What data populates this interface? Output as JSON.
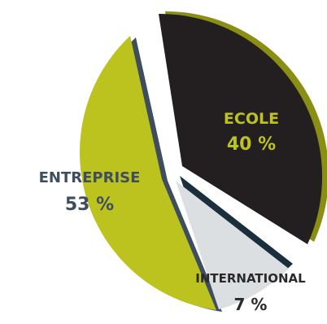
{
  "chart_data": {
    "type": "pie",
    "title": "",
    "slices": [
      {
        "label": "ENTREPRISE",
        "value_label": "53 %",
        "value": 53,
        "color": "#bcc21e",
        "shadow": "#3e4e5e"
      },
      {
        "label": "ECOLE",
        "value_label": "40 %",
        "value": 40,
        "color": "#231f20",
        "shadow": "#8a8f14"
      },
      {
        "label": "INTERNATIONAL",
        "value_label": "7 %",
        "value": 7,
        "color": "#dcdfe2",
        "shadow": "#1a2e3c"
      }
    ]
  },
  "colors": {
    "ecole_text": "#bcc21e",
    "entreprise_text": "#3e4e5e",
    "international_text": "#2a2a2a"
  }
}
